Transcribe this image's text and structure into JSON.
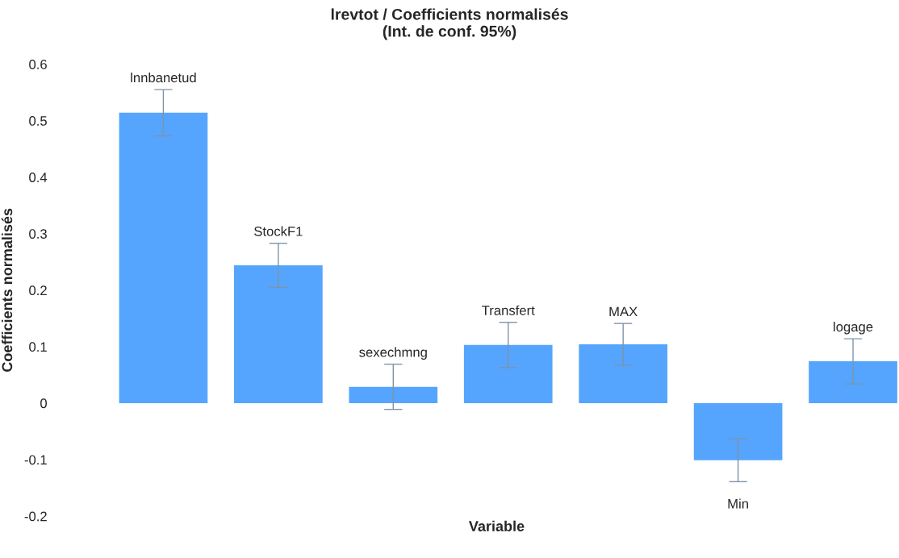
{
  "chart_data": {
    "type": "bar",
    "title": "lrevtot / Coefficients normalisés\n(Int. de conf. 95%)",
    "xlabel": "Variable",
    "ylabel": "Coefficients normalisés",
    "categories": [
      "lnnbanetud",
      "StockF1",
      "sexechmng",
      "Transfert",
      "MAX",
      "Min",
      "logage"
    ],
    "values": [
      0.514,
      0.244,
      0.029,
      0.103,
      0.104,
      -0.101,
      0.074
    ],
    "errors": [
      0.041,
      0.039,
      0.04,
      0.04,
      0.037,
      0.038,
      0.04
    ],
    "color": "#55a5fe",
    "ylim": [
      -0.2,
      0.6
    ],
    "yticks": [
      -0.2,
      -0.1,
      0,
      0.1,
      0.2,
      0.3,
      0.4,
      0.5,
      0.6
    ],
    "grid": false,
    "legend": false
  }
}
